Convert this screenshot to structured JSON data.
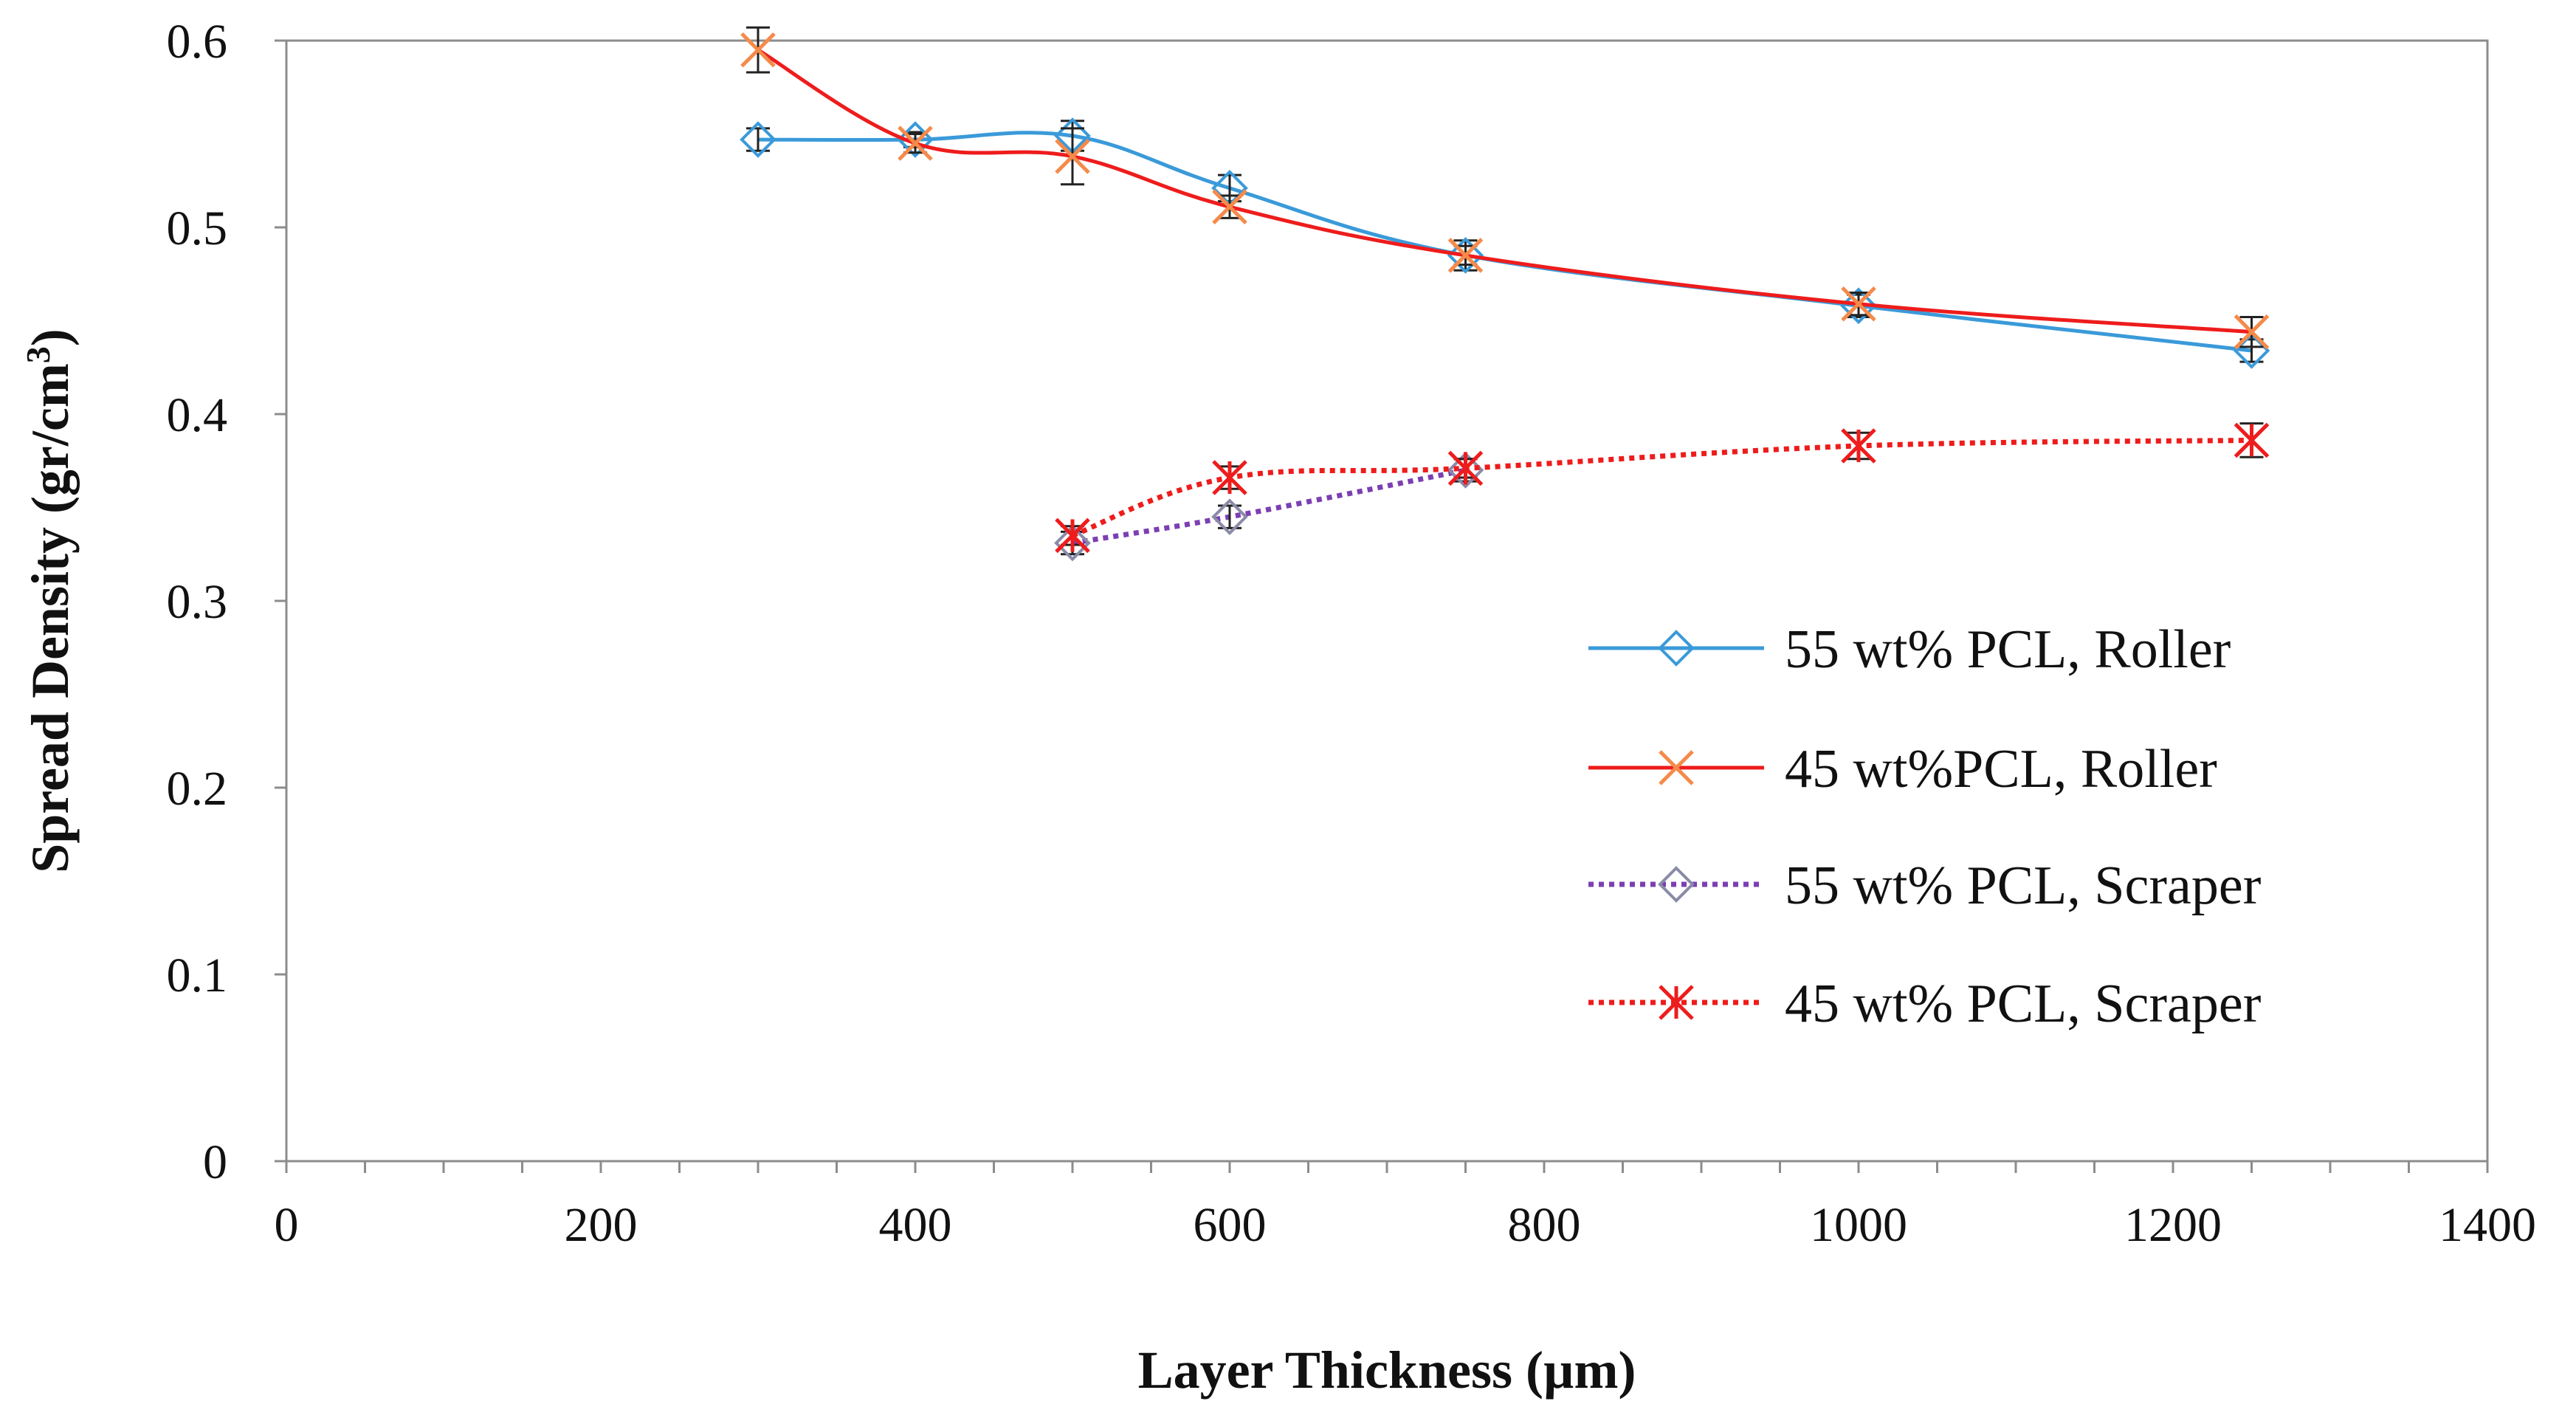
{
  "chart_data": {
    "type": "line",
    "title": "",
    "xlabel": "Layer Thickness (µm)",
    "ylabel": "Spread Density (gr/cm",
    "ylabel_superscript": "3",
    "ylabel_suffix": ")",
    "xlim": [
      0,
      1400
    ],
    "ylim": [
      0,
      0.6
    ],
    "x_ticks": [
      0,
      200,
      400,
      600,
      800,
      1000,
      1200,
      1400
    ],
    "x_tick_labels": [
      "0",
      "200",
      "400",
      "600",
      "800",
      "1000",
      "1200",
      "1400"
    ],
    "x_minor_step": 50,
    "y_ticks": [
      0,
      0.1,
      0.2,
      0.3,
      0.4,
      0.5,
      0.6
    ],
    "y_tick_labels": [
      "0",
      "0.1",
      "0.2",
      "0.3",
      "0.4",
      "0.5",
      "0.6"
    ],
    "grid": false,
    "legend_position": "center-right",
    "series": [
      {
        "name": "55 wt% PCL, Roller",
        "color": "#3a9ad9",
        "marker": "diamond",
        "line_style": "solid",
        "points": [
          {
            "x": 300,
            "y": 0.547,
            "err": 0.006
          },
          {
            "x": 400,
            "y": 0.547,
            "err": 0.004
          },
          {
            "x": 500,
            "y": 0.549,
            "err": 0.008
          },
          {
            "x": 600,
            "y": 0.521,
            "err": 0.007
          },
          {
            "x": 750,
            "y": 0.485,
            "err": 0.008
          },
          {
            "x": 1000,
            "y": 0.458,
            "err": 0.006
          },
          {
            "x": 1250,
            "y": 0.434,
            "err": 0.006
          }
        ]
      },
      {
        "name": "45 wt%PCL, Roller",
        "color": "#ee1c1c",
        "marker_color": "#f58a4a",
        "marker": "x",
        "line_style": "solid",
        "points": [
          {
            "x": 300,
            "y": 0.595,
            "err": 0.012
          },
          {
            "x": 400,
            "y": 0.545,
            "err": 0.005
          },
          {
            "x": 500,
            "y": 0.538,
            "err": 0.015
          },
          {
            "x": 600,
            "y": 0.511,
            "err": 0.006
          },
          {
            "x": 750,
            "y": 0.485,
            "err": 0.005
          },
          {
            "x": 1000,
            "y": 0.459,
            "err": 0.006
          },
          {
            "x": 1250,
            "y": 0.444,
            "err": 0.008
          }
        ]
      },
      {
        "name": "55 wt% PCL, Scraper",
        "color": "#7b3fb3",
        "marker_color": "#8a8aa8",
        "marker": "diamond",
        "line_style": "dotted",
        "points": [
          {
            "x": 500,
            "y": 0.331,
            "err": 0.006
          },
          {
            "x": 600,
            "y": 0.345,
            "err": 0.006
          },
          {
            "x": 750,
            "y": 0.37,
            "err": 0.006
          }
        ]
      },
      {
        "name": "45 wt% PCL, Scraper",
        "color": "#ee1c1c",
        "marker": "asterisk",
        "line_style": "dotted",
        "points": [
          {
            "x": 500,
            "y": 0.335,
            "err": 0.005
          },
          {
            "x": 600,
            "y": 0.366,
            "err": 0.006
          },
          {
            "x": 750,
            "y": 0.371,
            "err": 0.005
          },
          {
            "x": 1000,
            "y": 0.383,
            "err": 0.007
          },
          {
            "x": 1250,
            "y": 0.386,
            "err": 0.009
          }
        ]
      }
    ]
  }
}
